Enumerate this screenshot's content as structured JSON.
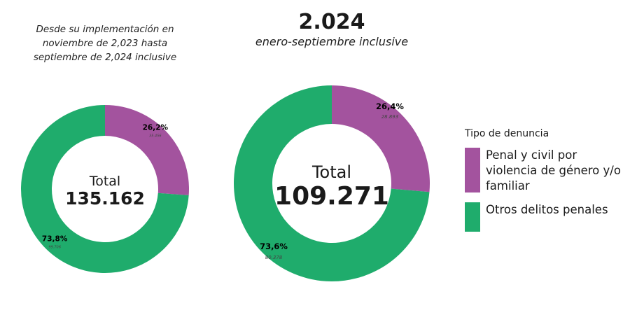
{
  "legend": {
    "title": "Tipo de denuncia",
    "items": [
      {
        "label": "Penal y civil por violencia de género y/o familiar",
        "color": "#a3539e"
      },
      {
        "label": "Otros delitos penales",
        "color": "#1fac6c"
      }
    ]
  },
  "chart_data": [
    {
      "type": "pie",
      "title": "",
      "subtitle": "Desde su implementación en noviembre de 2,023 hasta septiembre de 2,024 inclusive",
      "center_label": "Total",
      "center_value": "135.162",
      "slices": [
        {
          "label": "Penal y civil por violencia de género y/o familiar",
          "percent": 26.2,
          "percent_text": "26,2%",
          "value_text": "35.456"
        },
        {
          "label": "Otros delitos penales",
          "percent": 73.8,
          "percent_text": "73,8%",
          "value_text": "99.706"
        }
      ]
    },
    {
      "type": "pie",
      "title": "2.024",
      "subtitle": "enero-septiembre inclusive",
      "center_label": "Total",
      "center_value": "109.271",
      "slices": [
        {
          "label": "Penal y civil por violencia de género y/o familiar",
          "percent": 26.4,
          "percent_text": "26,4%",
          "value_text": "28.893"
        },
        {
          "label": "Otros delitos penales",
          "percent": 73.6,
          "percent_text": "73,6%",
          "value_text": "80.378"
        }
      ]
    }
  ]
}
